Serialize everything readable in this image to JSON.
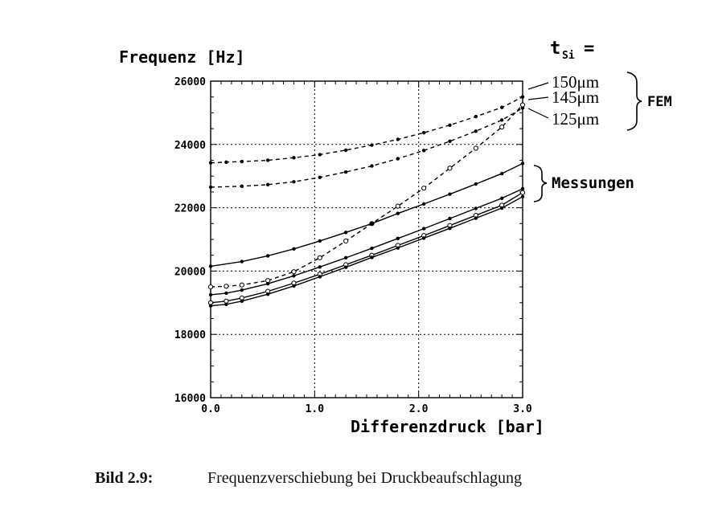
{
  "chart_data": {
    "type": "line",
    "ylabel": "Frequenz [Hz]",
    "xlabel": "Differenzdruck [bar]",
    "xlim": [
      0,
      3
    ],
    "ylim": [
      16000,
      26000
    ],
    "x_ticks": [
      "0.0",
      "1.0",
      "2.0",
      "3.0"
    ],
    "y_ticks": [
      "16000",
      "18000",
      "20000",
      "22000",
      "24000",
      "26000"
    ],
    "grid": true,
    "legend_header": "t",
    "legend_header_sub": "Si",
    "legend_header_eq": "=",
    "fem_labels": [
      "150μm",
      "145μm",
      "125μm"
    ],
    "fem_group": "FEM",
    "messungen_group": "Messungen",
    "series": [
      {
        "group": "FEM",
        "style": "dashed",
        "marker": "dot",
        "x": [
          0,
          0.15,
          0.3,
          0.55,
          0.8,
          1.05,
          1.3,
          1.55,
          1.8,
          2.05,
          2.3,
          2.55,
          2.8,
          3.0
        ],
        "y": [
          23420,
          23440,
          23460,
          23500,
          23580,
          23680,
          23820,
          23980,
          24160,
          24370,
          24610,
          24880,
          25170,
          25500
        ]
      },
      {
        "group": "FEM",
        "style": "dashed",
        "marker": "dot",
        "x": [
          0,
          0.3,
          0.55,
          0.8,
          1.05,
          1.3,
          1.55,
          1.8,
          2.05,
          2.3,
          2.55,
          2.8,
          3.0
        ],
        "y": [
          22650,
          22680,
          22730,
          22820,
          22960,
          23130,
          23320,
          23550,
          23810,
          24100,
          24420,
          24770,
          25150
        ]
      },
      {
        "group": "FEM",
        "style": "dashed",
        "marker": "circle",
        "x": [
          0,
          0.15,
          0.3,
          0.55,
          0.8,
          1.05,
          1.3,
          1.55,
          1.8,
          2.05,
          2.3,
          2.55,
          2.8,
          3.0
        ],
        "y": [
          19500,
          19520,
          19560,
          19700,
          19980,
          20420,
          20950,
          21500,
          22050,
          22620,
          23250,
          23880,
          24550,
          25250
        ]
      },
      {
        "group": "Messungen",
        "style": "solid",
        "marker": "dot",
        "x": [
          0,
          0.3,
          0.55,
          0.8,
          1.05,
          1.3,
          1.55,
          1.8,
          2.05,
          2.3,
          2.55,
          2.8,
          3.0
        ],
        "y": [
          20150,
          20300,
          20480,
          20700,
          20950,
          21220,
          21500,
          21820,
          22120,
          22430,
          22750,
          23080,
          23400
        ]
      },
      {
        "group": "Messungen",
        "style": "solid",
        "marker": "dot",
        "x": [
          0,
          0.15,
          0.3,
          0.55,
          0.8,
          1.05,
          1.3,
          1.55,
          1.8,
          2.05,
          2.3,
          2.55,
          2.8,
          3.0
        ],
        "y": [
          19250,
          19300,
          19400,
          19600,
          19850,
          20130,
          20420,
          20720,
          21030,
          21340,
          21660,
          21980,
          22300,
          22600
        ]
      },
      {
        "group": "Messungen",
        "style": "solid",
        "marker": "circle",
        "x": [
          0,
          0.15,
          0.3,
          0.55,
          0.8,
          1.05,
          1.3,
          1.55,
          1.8,
          2.05,
          2.3,
          2.55,
          2.8,
          3.0
        ],
        "y": [
          19000,
          19050,
          19150,
          19360,
          19620,
          19900,
          20200,
          20500,
          20810,
          21120,
          21440,
          21760,
          22080,
          22480
        ]
      },
      {
        "group": "Messungen",
        "style": "solid",
        "marker": "dot",
        "x": [
          0,
          0.15,
          0.3,
          0.55,
          0.8,
          1.05,
          1.3,
          1.55,
          1.8,
          2.05,
          2.3,
          2.55,
          2.8,
          3.0
        ],
        "y": [
          18900,
          18950,
          19050,
          19270,
          19530,
          19820,
          20120,
          20430,
          20730,
          21040,
          21350,
          21670,
          21990,
          22350
        ]
      }
    ]
  },
  "caption": {
    "label": "Bild 2.9:",
    "text": "Frequenzverschiebung bei Druckbeaufschlagung"
  }
}
